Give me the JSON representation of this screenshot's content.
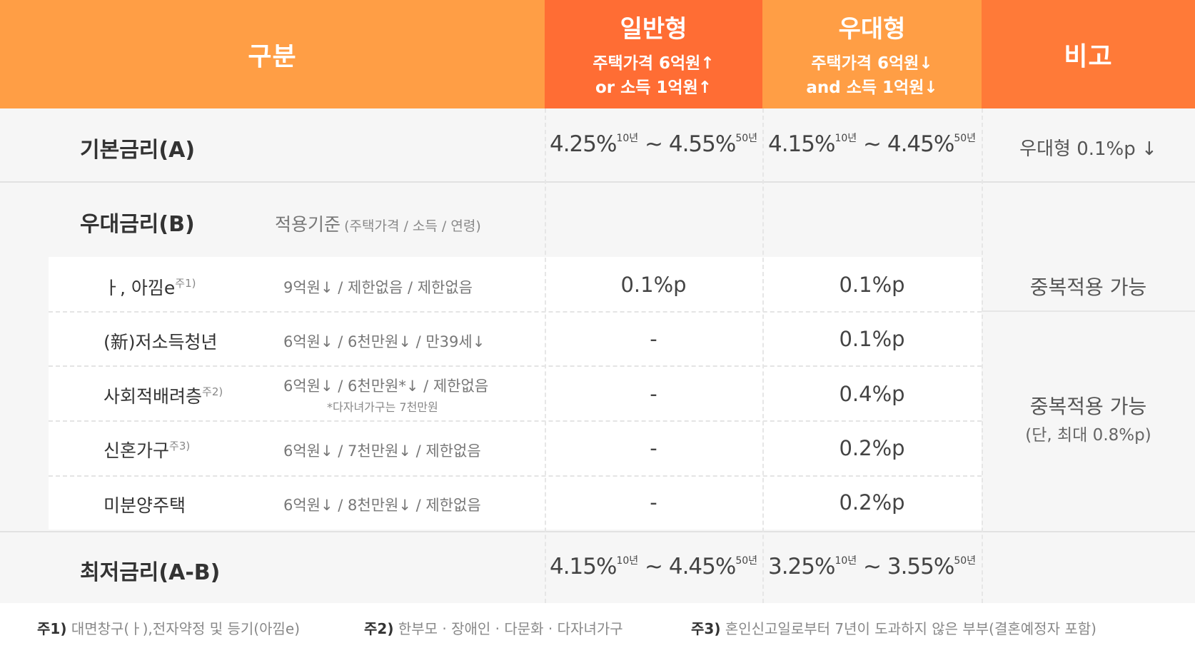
{
  "header": {
    "category": "구분",
    "general": {
      "title": "일반형",
      "line1": "주택가격 6억원↑",
      "line2": "or 소득 1억원↑"
    },
    "preferential": {
      "title": "우대형",
      "line1": "주택가격 6억원↓",
      "line2": "and 소득 1억원↓"
    },
    "remarks": "비고",
    "colors": {
      "left": "#ff9e45",
      "mid": "#ff6d34",
      "right": "#ff7a38"
    }
  },
  "base_rate": {
    "label": "기본금리(A)",
    "general": {
      "low": "4.25%",
      "low_term": "10년",
      "sep": " ~ ",
      "high": "4.55%",
      "high_term": "50년"
    },
    "preferential": {
      "low": "4.15%",
      "low_term": "10년",
      "sep": " ~ ",
      "high": "4.45%",
      "high_term": "50년"
    },
    "remark": "우대형 0.1%p ↓"
  },
  "pref_rate": {
    "label": "우대금리(B)",
    "criteria_label": "적용기준",
    "criteria_detail": "(주택가격 / 소득 / 연령)",
    "rows": [
      {
        "name": "ㅏ, 아낌e",
        "note": "주1)",
        "criteria": "9억원↓ / 제한없음 / 제한없음",
        "general": "0.1%p",
        "preferential": "0.1%p"
      },
      {
        "name": "(新)저소득청년",
        "note": "",
        "criteria": "6억원↓ / 6천만원↓ / 만39세↓",
        "general": "-",
        "preferential": "0.1%p"
      },
      {
        "name": "사회적배려층",
        "note": "주2)",
        "criteria": "6억원↓ / 6천만원*↓ / 제한없음",
        "criteria_note": "*다자녀가구는 7천만원",
        "general": "-",
        "preferential": "0.4%p"
      },
      {
        "name": "신혼가구",
        "note": "주3)",
        "criteria": "6억원↓ / 7천만원↓ / 제한없음",
        "general": "-",
        "preferential": "0.2%p"
      },
      {
        "name": "미분양주택",
        "note": "",
        "criteria": "6억원↓ / 8천만원↓ / 제한없음",
        "general": "-",
        "preferential": "0.2%p"
      }
    ],
    "remark_first": "중복적용 가능",
    "remark_group": "중복적용 가능",
    "remark_group_sub": "(단, 최대 0.8%p)"
  },
  "min_rate": {
    "label": "최저금리(A-B)",
    "general": {
      "low": "4.15%",
      "low_term": "10년",
      "sep": " ~ ",
      "high": "4.45%",
      "high_term": "50년"
    },
    "preferential": {
      "low": "3.25%",
      "low_term": "10년",
      "sep": " ~ ",
      "high": "3.55%",
      "high_term": "50년"
    }
  },
  "footnotes": [
    {
      "key": "주1)",
      "text": " 대면창구(ㅏ),전자약정 및 등기(아낌e)"
    },
    {
      "key": "주2)",
      "text": " 한부모 · 장애인 · 다문화 · 다자녀가구"
    },
    {
      "key": "주3)",
      "text": " 혼인신고일로부터 7년이 도과하지 않은 부부(결혼예정자 포함)"
    }
  ]
}
